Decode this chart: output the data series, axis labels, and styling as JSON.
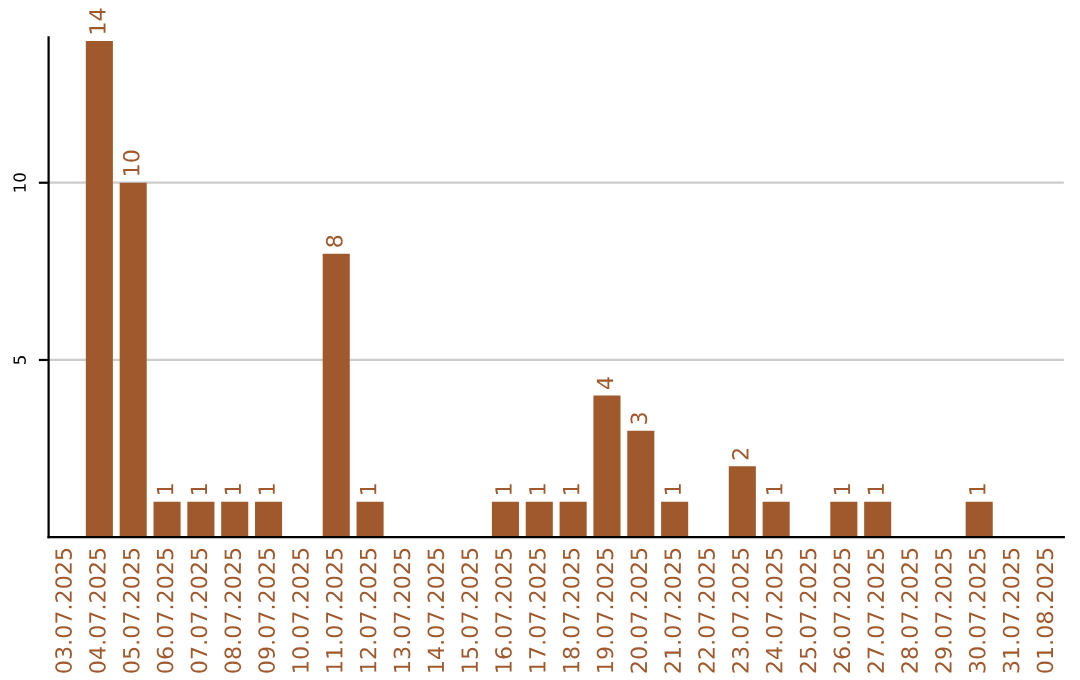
{
  "chart_data": {
    "type": "bar",
    "categories": [
      "03.07.2025",
      "04.07.2025",
      "05.07.2025",
      "06.07.2025",
      "07.07.2025",
      "08.07.2025",
      "09.07.2025",
      "10.07.2025",
      "11.07.2025",
      "12.07.2025",
      "13.07.2025",
      "14.07.2025",
      "15.07.2025",
      "16.07.2025",
      "17.07.2025",
      "18.07.2025",
      "19.07.2025",
      "20.07.2025",
      "21.07.2025",
      "22.07.2025",
      "23.07.2025",
      "24.07.2025",
      "25.07.2025",
      "26.07.2025",
      "27.07.2025",
      "28.07.2025",
      "29.07.2025",
      "30.07.2025",
      "31.07.2025",
      "01.08.2025"
    ],
    "values": [
      null,
      14,
      10,
      1,
      1,
      1,
      1,
      null,
      8,
      1,
      null,
      null,
      null,
      1,
      1,
      1,
      4,
      3,
      1,
      null,
      2,
      1,
      null,
      1,
      1,
      null,
      null,
      1,
      null,
      null
    ],
    "color": "#a0592d",
    "ylim": [
      0,
      14.1
    ],
    "yticks": [
      5,
      10
    ],
    "grid": "y",
    "data_labels": true
  }
}
